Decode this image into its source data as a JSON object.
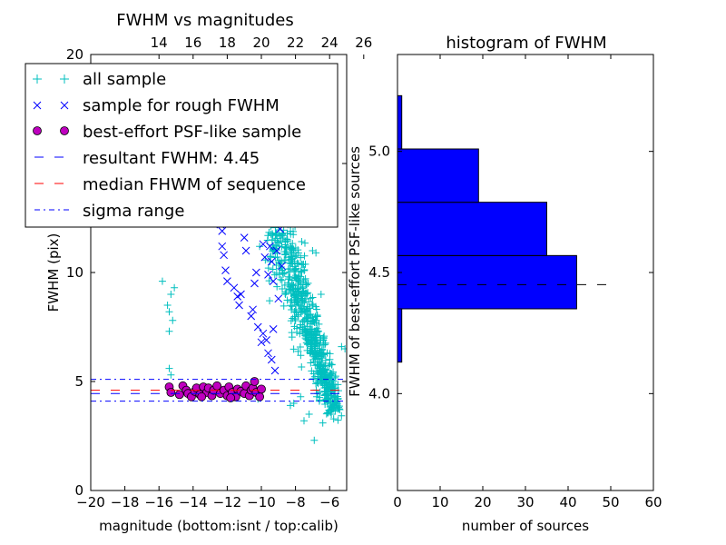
{
  "chart_data": [
    {
      "type": "scatter",
      "title": "FWHM vs magnitudes",
      "xlabel": "magnitude (bottom:isnt / top:calib)",
      "ylabel": "FWHM (pix)",
      "xlim": [
        -20,
        -5
      ],
      "ylim": [
        0,
        20
      ],
      "x_ticks": [
        -20,
        -18,
        -16,
        -14,
        -12,
        -10,
        -8,
        -6
      ],
      "x_tick_labels": [
        "−20",
        "−18",
        "−16",
        "−14",
        "−12",
        "−10",
        "−8",
        "−6"
      ],
      "y_ticks": [
        0,
        5,
        10,
        15,
        20
      ],
      "y_tick_labels": [
        "0",
        "5",
        "10",
        "15",
        "20"
      ],
      "top_axis": {
        "offset": 30.0,
        "ticks": [
          14,
          16,
          18,
          20,
          22,
          24,
          26
        ],
        "tick_labels": [
          "14",
          "16",
          "18",
          "20",
          "22",
          "24",
          "26"
        ]
      },
      "grid": false,
      "legend": {
        "placement": "upper-left",
        "entries": [
          {
            "label": "all sample",
            "marker": "plus",
            "color": "#00bfbf"
          },
          {
            "label": "sample for rough FWHM",
            "marker": "x",
            "color": "#0000ff"
          },
          {
            "label": "best-effort PSF-like sample",
            "marker": "circle",
            "color": "#bf00bf"
          },
          {
            "label": "resultant FWHM: 4.45",
            "marker": "dashed-line",
            "color": "#0000ff"
          },
          {
            "label": "median FHWM of sequence",
            "marker": "dashed-line",
            "color": "#ff0000"
          },
          {
            "label": "sigma range",
            "marker": "dashdot-line",
            "color": "#0000ff"
          }
        ]
      },
      "series": [
        {
          "name": "all sample",
          "marker": "plus",
          "color": "#00bfbf",
          "points": [
            [
              -15.8,
              9.6
            ],
            [
              -15.5,
              8.5
            ],
            [
              -15.4,
              8.2
            ],
            [
              -15.3,
              9.0
            ],
            [
              -15.2,
              7.8
            ],
            [
              -15.1,
              9.3
            ],
            [
              -15.4,
              5.6
            ],
            [
              -15.3,
              5.3
            ],
            [
              -15.4,
              7.3
            ],
            [
              -13.2,
              4.5
            ],
            [
              -12.6,
              4.6
            ],
            [
              -11.7,
              4.4
            ],
            [
              -10.2,
              4.2
            ],
            [
              -10.1,
              11.2
            ],
            [
              -9.8,
              15.3
            ],
            [
              -9.6,
              13.8
            ],
            [
              -9.3,
              16.5
            ],
            [
              -9.5,
              10.5
            ],
            [
              -9.4,
              12.2
            ],
            [
              -9.2,
              18.9
            ],
            [
              -9.0,
              14.7
            ],
            [
              -8.8,
              17.3
            ],
            [
              -8.6,
              15.0
            ],
            [
              -8.4,
              16.2
            ],
            [
              -8.2,
              14.0
            ],
            [
              -7.8,
              19.2
            ],
            [
              -7.4,
              16.1
            ],
            [
              -7.0,
              11.0
            ],
            [
              -6.8,
              10.9
            ],
            [
              -6.5,
              9.0
            ],
            [
              -5.3,
              6.6
            ],
            [
              -5.1,
              6.5
            ],
            [
              -7.2,
              3.5
            ],
            [
              -7.5,
              3.2
            ],
            [
              -6.9,
              2.3
            ],
            [
              -6.4,
              3.1
            ],
            [
              -5.9,
              3.5
            ],
            [
              -5.6,
              3.8
            ],
            [
              -6.2,
              4.2
            ],
            [
              -6.6,
              4.1
            ],
            [
              -8.1,
              4.0
            ],
            [
              -7.7,
              4.3
            ],
            [
              -8.3,
              3.9
            ]
          ],
          "cluster": {
            "x_range": [
              -9.5,
              -5.6
            ],
            "y_top": [
              17.5,
              3.6
            ],
            "y_bottom": [
              9.0,
              3.6
            ],
            "spread": 2.3
          }
        },
        {
          "name": "sample for rough FWHM",
          "marker": "x",
          "color": "#0000ff",
          "points": [
            [
              -12.5,
              13.7
            ],
            [
              -12.4,
              12.2
            ],
            [
              -12.3,
              11.9
            ],
            [
              -12.2,
              10.8
            ],
            [
              -12.1,
              10.1
            ],
            [
              -12.0,
              9.6
            ],
            [
              -12.3,
              11.2
            ],
            [
              -11.6,
              9.3
            ],
            [
              -11.4,
              8.9
            ],
            [
              -11.3,
              8.5
            ],
            [
              -11.2,
              9.0
            ],
            [
              -11.0,
              11.6
            ],
            [
              -10.9,
              11.0
            ],
            [
              -10.6,
              8.0
            ],
            [
              -10.4,
              9.5
            ],
            [
              -10.3,
              10.0
            ],
            [
              -10.1,
              14.3
            ],
            [
              -10.0,
              12.3
            ],
            [
              -9.9,
              11.3
            ],
            [
              -9.8,
              10.7
            ],
            [
              -9.8,
              13.5
            ],
            [
              -9.6,
              9.9
            ],
            [
              -9.5,
              11.2
            ],
            [
              -9.4,
              10.5
            ],
            [
              -9.3,
              9.6
            ],
            [
              -9.2,
              12.5
            ],
            [
              -9.1,
              11.0
            ],
            [
              -9.0,
              13.1
            ],
            [
              -8.9,
              12.0
            ],
            [
              -10.5,
              8.3
            ],
            [
              -9.7,
              6.9
            ],
            [
              -9.9,
              7.2
            ],
            [
              -10.2,
              7.5
            ],
            [
              -8.8,
              10.3
            ],
            [
              -9.0,
              8.8
            ],
            [
              -9.3,
              7.4
            ],
            [
              -9.6,
              6.3
            ],
            [
              -10.0,
              6.8
            ],
            [
              -9.4,
              6.0
            ],
            [
              -9.2,
              5.5
            ]
          ]
        },
        {
          "name": "best-effort PSF-like sample",
          "marker": "circle",
          "color": "#bf00bf",
          "points": [
            [
              -15.4,
              4.75
            ],
            [
              -15.3,
              4.5
            ],
            [
              -14.8,
              4.4
            ],
            [
              -14.6,
              4.8
            ],
            [
              -14.4,
              4.6
            ],
            [
              -14.3,
              4.45
            ],
            [
              -14.1,
              4.3
            ],
            [
              -13.9,
              4.55
            ],
            [
              -13.8,
              4.7
            ],
            [
              -13.6,
              4.4
            ],
            [
              -13.4,
              4.75
            ],
            [
              -13.2,
              4.5
            ],
            [
              -13.1,
              4.7
            ],
            [
              -12.9,
              4.35
            ],
            [
              -12.8,
              4.6
            ],
            [
              -12.6,
              4.8
            ],
            [
              -12.4,
              4.45
            ],
            [
              -12.2,
              4.6
            ],
            [
              -12.0,
              4.35
            ],
            [
              -11.9,
              4.75
            ],
            [
              -11.7,
              4.5
            ],
            [
              -11.5,
              4.3
            ],
            [
              -11.4,
              4.65
            ],
            [
              -11.2,
              4.55
            ],
            [
              -11.0,
              4.45
            ],
            [
              -10.9,
              4.8
            ],
            [
              -10.7,
              4.35
            ],
            [
              -10.6,
              4.6
            ],
            [
              -10.5,
              4.7
            ],
            [
              -10.4,
              5.0
            ],
            [
              -10.3,
              4.5
            ],
            [
              -10.1,
              4.3
            ],
            [
              -10.0,
              4.65
            ],
            [
              -11.8,
              4.25
            ],
            [
              -13.5,
              4.3
            ]
          ]
        }
      ],
      "lines": [
        {
          "name": "resultant FWHM: 4.45",
          "y": 4.45,
          "style": "dashed",
          "color": "#0000ff"
        },
        {
          "name": "median FHWM of sequence",
          "y": 4.6,
          "style": "dashed",
          "color": "#ff0000"
        },
        {
          "name": "sigma range",
          "y": 5.1,
          "style": "dashdot",
          "color": "#0000ff"
        },
        {
          "name": "sigma range",
          "y": 4.1,
          "style": "dashdot",
          "color": "#0000ff"
        }
      ]
    },
    {
      "type": "bar",
      "orientation": "horizontal",
      "title": "histogram of FWHM",
      "xlabel": "number of sources",
      "ylabel": "FWHM of best-effort PSF-like sources",
      "xlim": [
        0,
        60
      ],
      "ylim": [
        3.6,
        5.4
      ],
      "x_ticks": [
        0,
        10,
        20,
        30,
        40,
        50,
        60
      ],
      "x_tick_labels": [
        "0",
        "10",
        "20",
        "30",
        "40",
        "50",
        "60"
      ],
      "y_ticks": [
        4.0,
        4.5,
        5.0
      ],
      "y_tick_labels": [
        "4.0",
        "4.5",
        "5.0"
      ],
      "grid": false,
      "bar_color": "#0000ff",
      "bins": [
        {
          "y0": 4.13,
          "y1": 4.35,
          "count": 1
        },
        {
          "y0": 4.35,
          "y1": 4.57,
          "count": 42
        },
        {
          "y0": 4.57,
          "y1": 4.79,
          "count": 35
        },
        {
          "y0": 4.79,
          "y1": 5.01,
          "count": 19
        },
        {
          "y0": 5.01,
          "y1": 5.23,
          "count": 1
        }
      ],
      "lines": [
        {
          "y": 4.45,
          "x_range": [
            0,
            51
          ],
          "style": "dashed",
          "color": "#000000"
        }
      ]
    }
  ]
}
